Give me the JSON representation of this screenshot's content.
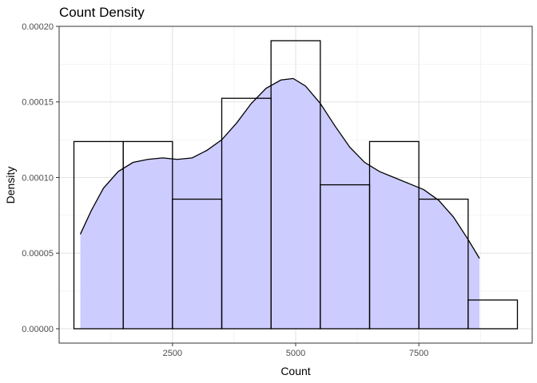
{
  "chart_data": {
    "type": "bar",
    "title": "Count Density",
    "xlabel": "Count",
    "ylabel": "Density",
    "xlim": [
      200,
      9800
    ],
    "ylim": [
      -9.5e-06,
      0.0002
    ],
    "grid": true,
    "x_ticks": [
      2500,
      5000,
      7500
    ],
    "x_tick_labels": [
      "2500",
      "5000",
      "7500"
    ],
    "y_ticks": [
      0,
      5e-05,
      0.0001,
      0.00015,
      0.0002
    ],
    "y_tick_labels": [
      "0.00000",
      "0.00005",
      "0.00010",
      "0.00015",
      "0.00020"
    ],
    "histogram": {
      "bin_width": 1000,
      "bins": [
        {
          "x0": 500,
          "x1": 1500,
          "density": 0.0001238
        },
        {
          "x0": 1500,
          "x1": 2500,
          "density": 0.0001238
        },
        {
          "x0": 2500,
          "x1": 3500,
          "density": 8.57e-05
        },
        {
          "x0": 3500,
          "x1": 4500,
          "density": 0.0001524
        },
        {
          "x0": 4500,
          "x1": 5500,
          "density": 0.0001905
        },
        {
          "x0": 5500,
          "x1": 6500,
          "density": 9.52e-05
        },
        {
          "x0": 6500,
          "x1": 7500,
          "density": 0.0001238
        },
        {
          "x0": 7500,
          "x1": 8500,
          "density": 8.57e-05
        },
        {
          "x0": 8500,
          "x1": 9500,
          "density": 1.9e-05
        }
      ],
      "fill": "none",
      "stroke": "#000000"
    },
    "density_curve": {
      "fill": "#ccccff",
      "stroke": "#000000",
      "points": [
        [
          630,
          6.25e-05
        ],
        [
          850,
          7.8e-05
        ],
        [
          1100,
          9.3e-05
        ],
        [
          1400,
          0.000104
        ],
        [
          1700,
          0.00011
        ],
        [
          2000,
          0.000112
        ],
        [
          2300,
          0.000113
        ],
        [
          2600,
          0.000112
        ],
        [
          2900,
          0.000113
        ],
        [
          3200,
          0.000118
        ],
        [
          3500,
          0.000125
        ],
        [
          3800,
          0.000136
        ],
        [
          4100,
          0.000149
        ],
        [
          4400,
          0.000159
        ],
        [
          4700,
          0.0001645
        ],
        [
          4950,
          0.0001655
        ],
        [
          5200,
          0.0001605
        ],
        [
          5500,
          0.000149
        ],
        [
          5800,
          0.000134
        ],
        [
          6100,
          0.00012
        ],
        [
          6400,
          0.00011
        ],
        [
          6700,
          0.000104
        ],
        [
          7000,
          0.0001
        ],
        [
          7300,
          9.6e-05
        ],
        [
          7600,
          9.2e-05
        ],
        [
          7900,
          8.5e-05
        ],
        [
          8200,
          7.4e-05
        ],
        [
          8500,
          5.9e-05
        ],
        [
          8730,
          4.65e-05
        ]
      ]
    }
  }
}
